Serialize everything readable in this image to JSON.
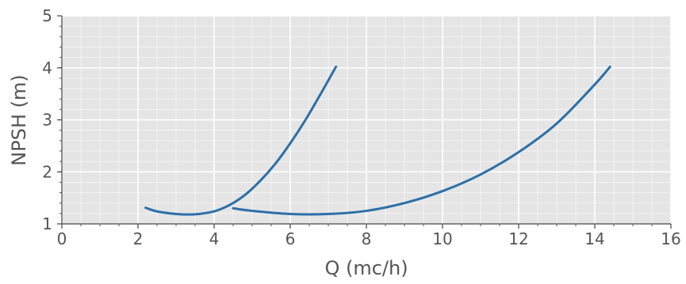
{
  "chart_data": {
    "type": "line",
    "title": "",
    "xlabel": "Q (mc/h)",
    "ylabel": "NPSH (m)",
    "xlim": [
      0,
      16
    ],
    "ylim": [
      1,
      5
    ],
    "x_ticks": [
      "0",
      "2",
      "4",
      "6",
      "8",
      "10",
      "12",
      "14",
      "16"
    ],
    "y_ticks": [
      "1",
      "2",
      "3",
      "4",
      "5"
    ],
    "grid": true,
    "background": "#e5e5e5",
    "grid_color": "#ffffff",
    "line_color": "#2c6fa8",
    "series": [
      {
        "x": [
          2.2,
          2.5,
          3.0,
          3.3,
          3.6,
          4.0,
          4.4,
          4.8,
          5.2,
          5.6,
          6.0,
          6.4,
          6.8,
          7.2
        ],
        "y": [
          1.31,
          1.24,
          1.19,
          1.18,
          1.19,
          1.24,
          1.36,
          1.55,
          1.82,
          2.15,
          2.55,
          3.0,
          3.5,
          4.02
        ]
      },
      {
        "x": [
          4.5,
          5.0,
          6.0,
          7.0,
          8.0,
          9.0,
          10.0,
          11.0,
          12.0,
          13.0,
          14.0,
          14.4
        ],
        "y": [
          1.3,
          1.25,
          1.19,
          1.19,
          1.25,
          1.4,
          1.63,
          1.95,
          2.38,
          2.93,
          3.68,
          4.02
        ]
      }
    ]
  }
}
